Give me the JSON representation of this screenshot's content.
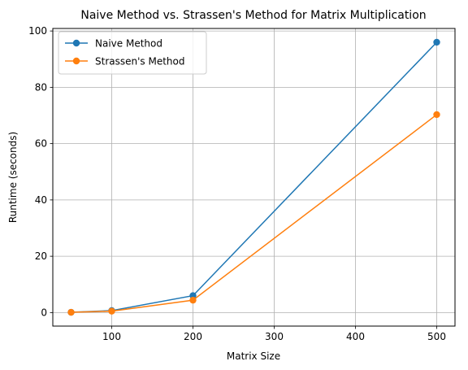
{
  "chart_data": {
    "type": "line",
    "title": "Naive Method vs. Strassen's Method for Matrix Multiplication",
    "xlabel": "Matrix Size",
    "ylabel": "Runtime (seconds)",
    "x": [
      50,
      100,
      200,
      500
    ],
    "series": [
      {
        "name": "Naive Method",
        "color": "#1f77b4",
        "values": [
          0.1,
          0.7,
          6.0,
          96.0
        ]
      },
      {
        "name": "Strassen's Method",
        "color": "#ff7f0e",
        "values": [
          0.1,
          0.5,
          4.4,
          70.3
        ]
      }
    ],
    "xlim": [
      27.5,
      522.5
    ],
    "ylim": [
      -4.8,
      100.9
    ],
    "xticks": [
      100,
      200,
      300,
      400,
      500
    ],
    "yticks": [
      0,
      20,
      40,
      60,
      80,
      100
    ],
    "grid": true,
    "legend_position": "top-left",
    "markers": "circle"
  }
}
